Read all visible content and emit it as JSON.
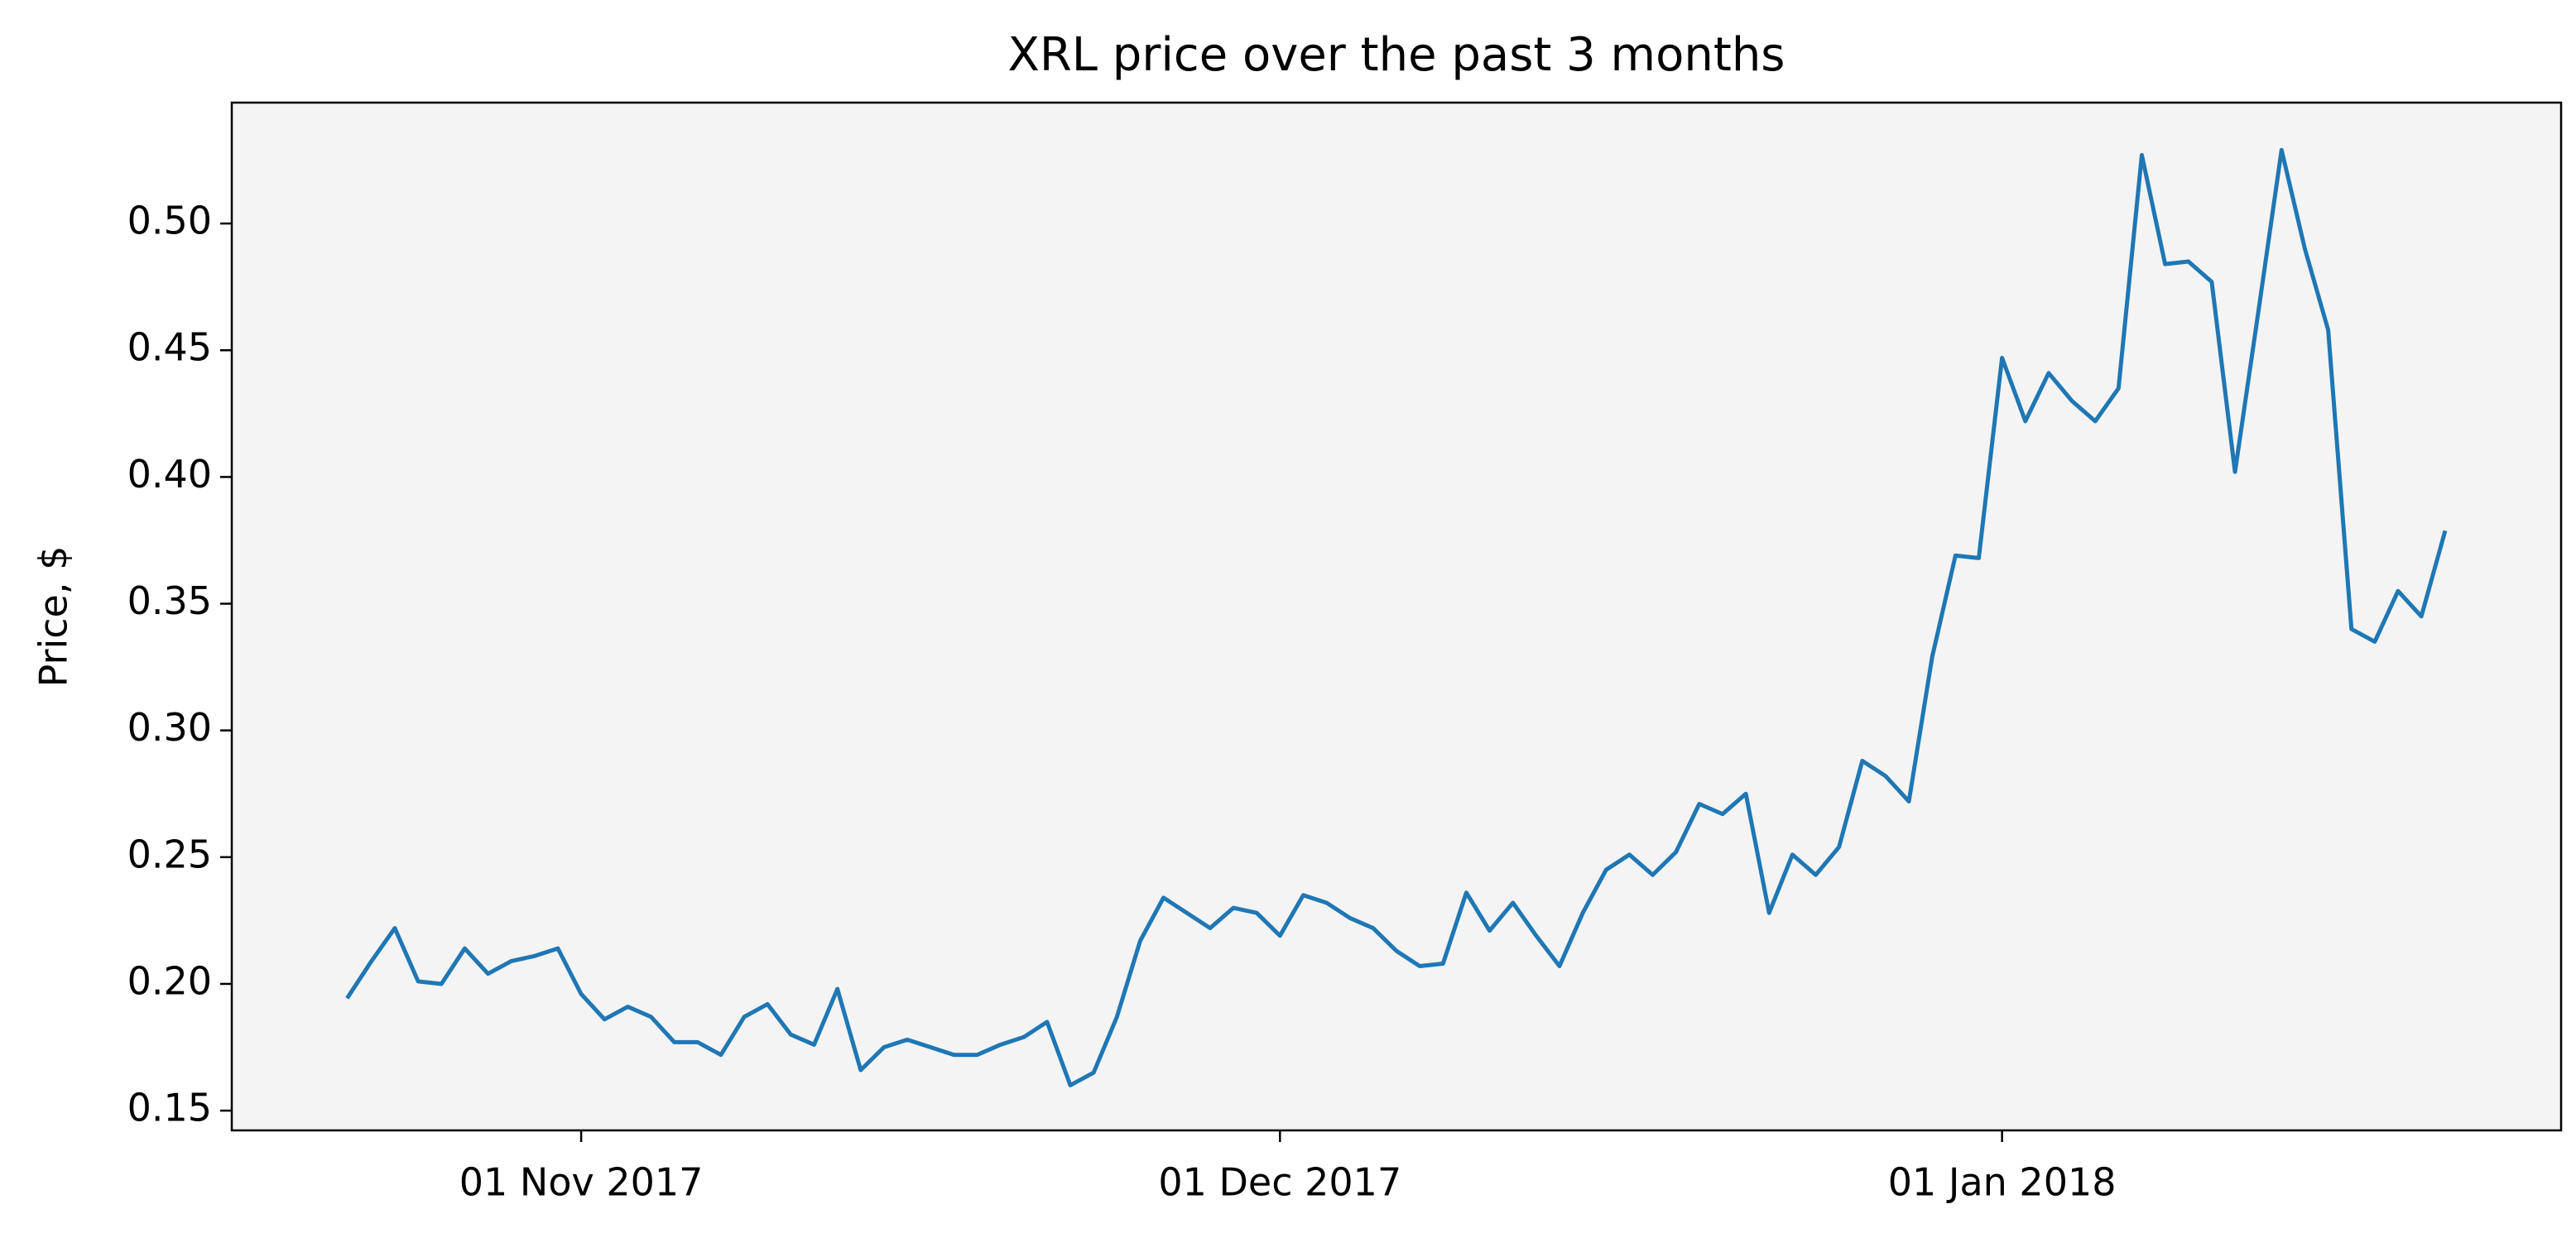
{
  "chart_data": {
    "type": "line",
    "title": "XRL price over the past 3 months",
    "y_label": "Price, $",
    "color": "#1f77b4",
    "background": "#f4f4f4",
    "x": [
      "2017-10-22",
      "2017-10-23",
      "2017-10-24",
      "2017-10-25",
      "2017-10-26",
      "2017-10-27",
      "2017-10-28",
      "2017-10-29",
      "2017-10-30",
      "2017-10-31",
      "2017-11-01",
      "2017-11-02",
      "2017-11-03",
      "2017-11-04",
      "2017-11-05",
      "2017-11-06",
      "2017-11-07",
      "2017-11-08",
      "2017-11-09",
      "2017-11-10",
      "2017-11-11",
      "2017-11-12",
      "2017-11-13",
      "2017-11-14",
      "2017-11-15",
      "2017-11-16",
      "2017-11-17",
      "2017-11-18",
      "2017-11-19",
      "2017-11-20",
      "2017-11-21",
      "2017-11-22",
      "2017-11-23",
      "2017-11-24",
      "2017-11-25",
      "2017-11-26",
      "2017-11-27",
      "2017-11-28",
      "2017-11-29",
      "2017-11-30",
      "2017-12-01",
      "2017-12-02",
      "2017-12-03",
      "2017-12-04",
      "2017-12-05",
      "2017-12-06",
      "2017-12-07",
      "2017-12-08",
      "2017-12-09",
      "2017-12-10",
      "2017-12-11",
      "2017-12-12",
      "2017-12-13",
      "2017-12-14",
      "2017-12-15",
      "2017-12-16",
      "2017-12-17",
      "2017-12-18",
      "2017-12-19",
      "2017-12-20",
      "2017-12-21",
      "2017-12-22",
      "2017-12-23",
      "2017-12-24",
      "2017-12-25",
      "2017-12-26",
      "2017-12-27",
      "2017-12-28",
      "2017-12-29",
      "2017-12-30",
      "2017-12-31",
      "2018-01-01",
      "2018-01-02",
      "2018-01-03",
      "2018-01-04",
      "2018-01-05",
      "2018-01-06",
      "2018-01-07",
      "2018-01-08",
      "2018-01-09",
      "2018-01-10",
      "2018-01-11",
      "2018-01-12",
      "2018-01-13",
      "2018-01-14",
      "2018-01-15",
      "2018-01-16",
      "2018-01-17",
      "2018-01-18",
      "2018-01-19",
      "2018-01-20"
    ],
    "values": [
      0.195,
      0.209,
      0.222,
      0.201,
      0.2,
      0.214,
      0.204,
      0.209,
      0.211,
      0.214,
      0.196,
      0.186,
      0.191,
      0.187,
      0.177,
      0.177,
      0.172,
      0.187,
      0.192,
      0.18,
      0.176,
      0.198,
      0.166,
      0.175,
      0.178,
      0.175,
      0.172,
      0.172,
      0.176,
      0.179,
      0.185,
      0.16,
      0.165,
      0.187,
      0.217,
      0.234,
      0.228,
      0.222,
      0.23,
      0.228,
      0.219,
      0.235,
      0.232,
      0.226,
      0.222,
      0.213,
      0.207,
      0.208,
      0.236,
      0.221,
      0.232,
      0.219,
      0.207,
      0.228,
      0.245,
      0.251,
      0.243,
      0.252,
      0.271,
      0.267,
      0.275,
      0.228,
      0.251,
      0.243,
      0.254,
      0.288,
      0.282,
      0.272,
      0.329,
      0.369,
      0.368,
      0.447,
      0.422,
      0.441,
      0.43,
      0.422,
      0.435,
      0.527,
      0.484,
      0.485,
      0.477,
      0.402,
      0.465,
      0.529,
      0.49,
      0.458,
      0.34,
      0.335,
      0.355,
      0.345,
      0.378
    ],
    "xlim": [
      "2017-10-17",
      "2018-01-25"
    ],
    "xticks": [
      {
        "value": "2017-11-01",
        "label": "01 Nov 2017"
      },
      {
        "value": "2017-12-01",
        "label": "01 Dec 2017"
      },
      {
        "value": "2018-01-01",
        "label": "01 Jan 2018"
      }
    ],
    "ylim": [
      0.1422,
      0.5477
    ],
    "yticks": [
      0.15,
      {
        "value": 0.2,
        "label": "0.20"
      },
      0.25,
      {
        "value": 0.3,
        "label": "0.30"
      },
      0.35,
      {
        "value": 0.4,
        "label": "0.40"
      },
      0.45,
      {
        "value": 0.5,
        "label": "0.50"
      }
    ],
    "grid": false
  }
}
